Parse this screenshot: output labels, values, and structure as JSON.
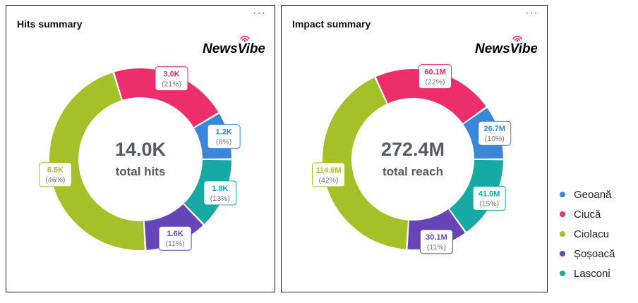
{
  "chart_data": [
    {
      "type": "pie",
      "title": "Hits summary",
      "center_value": "14.0K",
      "center_label": "total hits",
      "categories": [
        "Geoană",
        "Ciucă",
        "Ciolacu",
        "Șoșoacă",
        "Lasconi"
      ],
      "values": [
        1.2,
        3.0,
        6.5,
        1.6,
        1.8
      ],
      "value_labels": [
        "1.2K",
        "3.0K",
        "6.5K",
        "1.6K",
        "1.8K"
      ],
      "percent_labels": [
        "(8%)",
        "(21%)",
        "(46%)",
        "(11%)",
        "(13%)"
      ]
    },
    {
      "type": "pie",
      "title": "Impact summary",
      "center_value": "272.4M",
      "center_label": "total reach",
      "categories": [
        "Geoană",
        "Ciucă",
        "Ciolacu",
        "Șoșoacă",
        "Lasconi"
      ],
      "values": [
        26.7,
        60.1,
        114.6,
        30.1,
        41.0
      ],
      "value_labels": [
        "26.7M",
        "60.1M",
        "114.6M",
        "30.1M",
        "41.0M"
      ],
      "percent_labels": [
        "(10%)",
        "(22%)",
        "(42%)",
        "(11%)",
        "(15%)"
      ]
    }
  ],
  "legend": [
    "Geoană",
    "Ciucă",
    "Ciolacu",
    "Șoșoacă",
    "Lasconi"
  ],
  "colors": [
    "#3a86d8",
    "#ec2f6b",
    "#a5c12a",
    "#6645b8",
    "#17a9a4"
  ],
  "ui": {
    "menu_icon": "more-horizontal-icon",
    "logo_text": "NewsVibe",
    "logo_icon": "wifi-signal-icon"
  }
}
